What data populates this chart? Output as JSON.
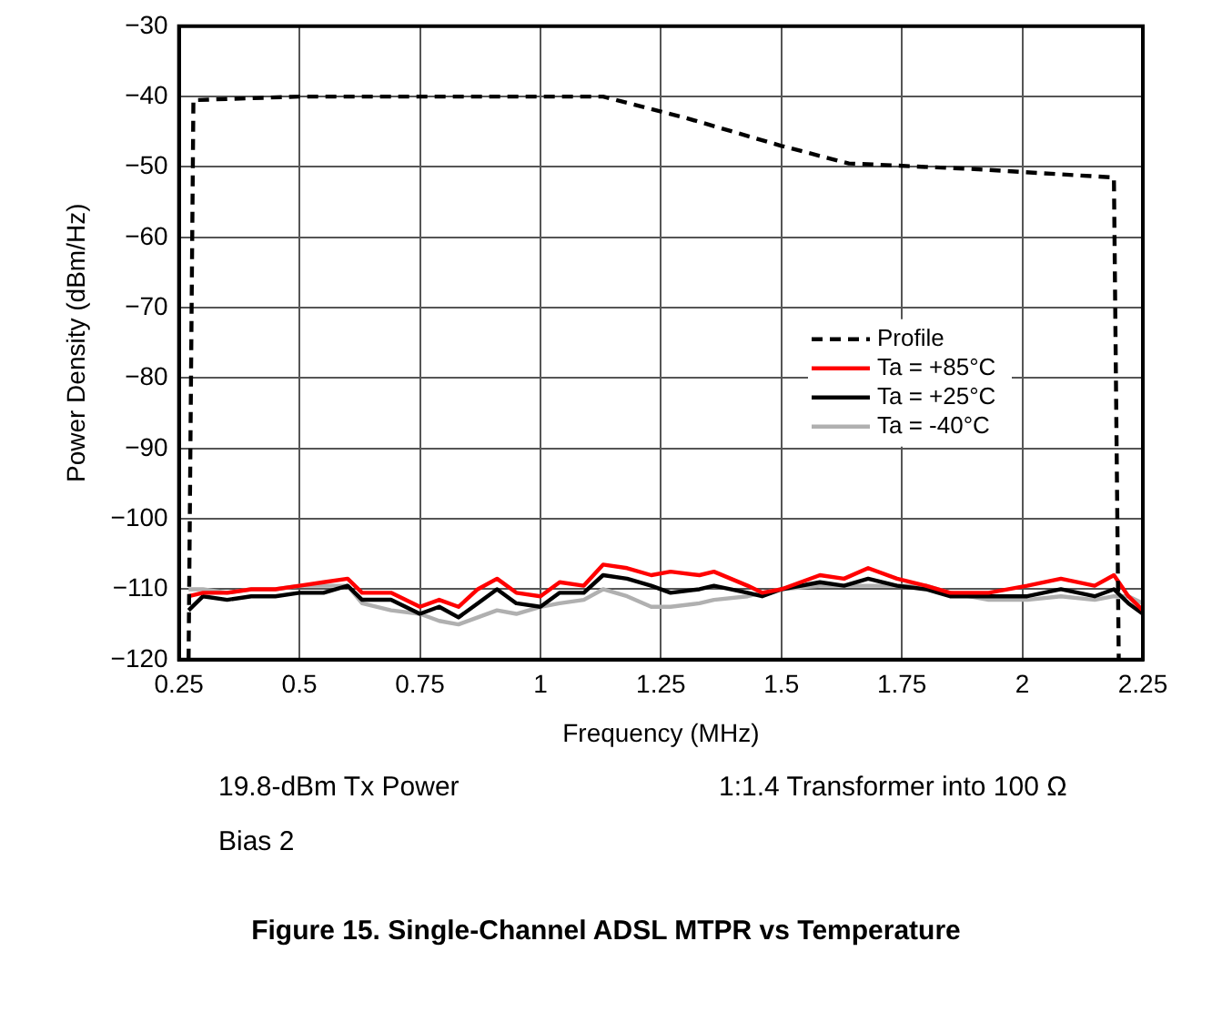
{
  "chart_data": {
    "type": "line",
    "title": "Figure 15. Single-Channel ADSL MTPR vs Temperature",
    "xlabel": "Frequency (MHz)",
    "ylabel": "Power Density (dBm/Hz)",
    "annotations": [
      "19.8-dBm Tx Power",
      "1:1.4 Transformer into 100 Ω",
      "Bias 2"
    ],
    "xlim": [
      0.25,
      2.25
    ],
    "xticks": [
      0.25,
      0.5,
      0.75,
      1,
      1.25,
      1.5,
      1.75,
      2,
      2.25
    ],
    "ylim": [
      -120,
      -30
    ],
    "yticks": [
      {
        "value": -120,
        "label": "−120"
      },
      {
        "value": -110,
        "label": "−110"
      },
      {
        "value": -100,
        "label": "−100"
      },
      {
        "value": -90,
        "label": "−90"
      },
      {
        "value": -80,
        "label": "−80"
      },
      {
        "value": -70,
        "label": "−70"
      },
      {
        "value": -60,
        "label": "−60"
      },
      {
        "value": -50,
        "label": "−50"
      },
      {
        "value": -40,
        "label": "−40"
      },
      {
        "value": -30,
        "label": "−30"
      }
    ],
    "grid": true,
    "legend": "right",
    "marker": "none",
    "series": [
      {
        "name": "Profile",
        "color": "#000000",
        "line_style": "dashed",
        "x": [
          0.27,
          0.28,
          0.5,
          0.75,
          1,
          1.13,
          1.3,
          1.5,
          1.64,
          1.9,
          2.19,
          2.2
        ],
        "values": [
          -120,
          -40.5,
          -40,
          -40,
          -40,
          -40,
          -43,
          -47,
          -49.5,
          -50.3,
          -51.5,
          -120
        ]
      },
      {
        "name": "Ta = +85°C",
        "color": "#ff0000",
        "x": [
          0.27,
          0.3,
          0.35,
          0.4,
          0.45,
          0.5,
          0.55,
          0.6,
          0.63,
          0.69,
          0.75,
          0.79,
          0.83,
          0.87,
          0.91,
          0.95,
          1.0,
          1.04,
          1.09,
          1.13,
          1.18,
          1.23,
          1.27,
          1.33,
          1.36,
          1.43,
          1.46,
          1.5,
          1.58,
          1.63,
          1.68,
          1.74,
          1.8,
          1.85,
          1.93,
          2.01,
          2.08,
          2.15,
          2.19,
          2.22,
          2.25
        ],
        "values": [
          -111,
          -110.5,
          -110.5,
          -110,
          -110,
          -109.5,
          -109,
          -108.5,
          -110.5,
          -110.5,
          -112.5,
          -111.5,
          -112.5,
          -110,
          -108.5,
          -110.5,
          -111,
          -109,
          -109.5,
          -106.5,
          -107,
          -108,
          -107.5,
          -108,
          -107.5,
          -109.5,
          -110.5,
          -110,
          -108,
          -108.5,
          -107,
          -108.5,
          -109.5,
          -110.5,
          -110.5,
          -109.5,
          -108.5,
          -109.5,
          -108,
          -111,
          -113
        ]
      },
      {
        "name": "Ta = +25°C",
        "color": "#000000",
        "x": [
          0.27,
          0.3,
          0.35,
          0.4,
          0.45,
          0.5,
          0.55,
          0.6,
          0.63,
          0.69,
          0.75,
          0.79,
          0.83,
          0.87,
          0.91,
          0.95,
          1.0,
          1.04,
          1.09,
          1.13,
          1.18,
          1.23,
          1.27,
          1.33,
          1.36,
          1.43,
          1.46,
          1.5,
          1.58,
          1.63,
          1.68,
          1.74,
          1.8,
          1.85,
          1.93,
          2.01,
          2.08,
          2.15,
          2.19,
          2.22,
          2.25
        ],
        "values": [
          -113,
          -111,
          -111.5,
          -111,
          -111,
          -110.5,
          -110.5,
          -109.5,
          -111.5,
          -111.5,
          -113.5,
          -112.5,
          -114,
          -112,
          -110,
          -112,
          -112.5,
          -110.5,
          -110.5,
          -108,
          -108.5,
          -109.5,
          -110.5,
          -110,
          -109.5,
          -110.5,
          -111,
          -110,
          -109,
          -109.5,
          -108.5,
          -109.5,
          -110,
          -111,
          -111,
          -111,
          -110,
          -111,
          -110,
          -112,
          -113.5
        ]
      },
      {
        "name": "Ta = -40°C",
        "color": "#b0b0b0",
        "x": [
          0.27,
          0.3,
          0.35,
          0.4,
          0.45,
          0.5,
          0.55,
          0.6,
          0.63,
          0.69,
          0.75,
          0.79,
          0.83,
          0.87,
          0.91,
          0.95,
          1.0,
          1.04,
          1.09,
          1.13,
          1.18,
          1.23,
          1.27,
          1.33,
          1.36,
          1.43,
          1.46,
          1.5,
          1.58,
          1.63,
          1.68,
          1.74,
          1.8,
          1.85,
          1.93,
          2.01,
          2.08,
          2.15,
          2.19,
          2.22,
          2.25
        ],
        "values": [
          -110,
          -110,
          -110.5,
          -110,
          -110,
          -109.5,
          -109.5,
          -109.5,
          -112,
          -113,
          -113.5,
          -114.5,
          -115,
          -114,
          -113,
          -113.5,
          -112.5,
          -112,
          -111.5,
          -110,
          -111,
          -112.5,
          -112.5,
          -112,
          -111.5,
          -111,
          -110.5,
          -110,
          -109.5,
          -109.5,
          -109.5,
          -109.5,
          -109.5,
          -110.5,
          -111.5,
          -111.5,
          -111,
          -111.5,
          -111,
          -111,
          -112
        ]
      }
    ]
  }
}
